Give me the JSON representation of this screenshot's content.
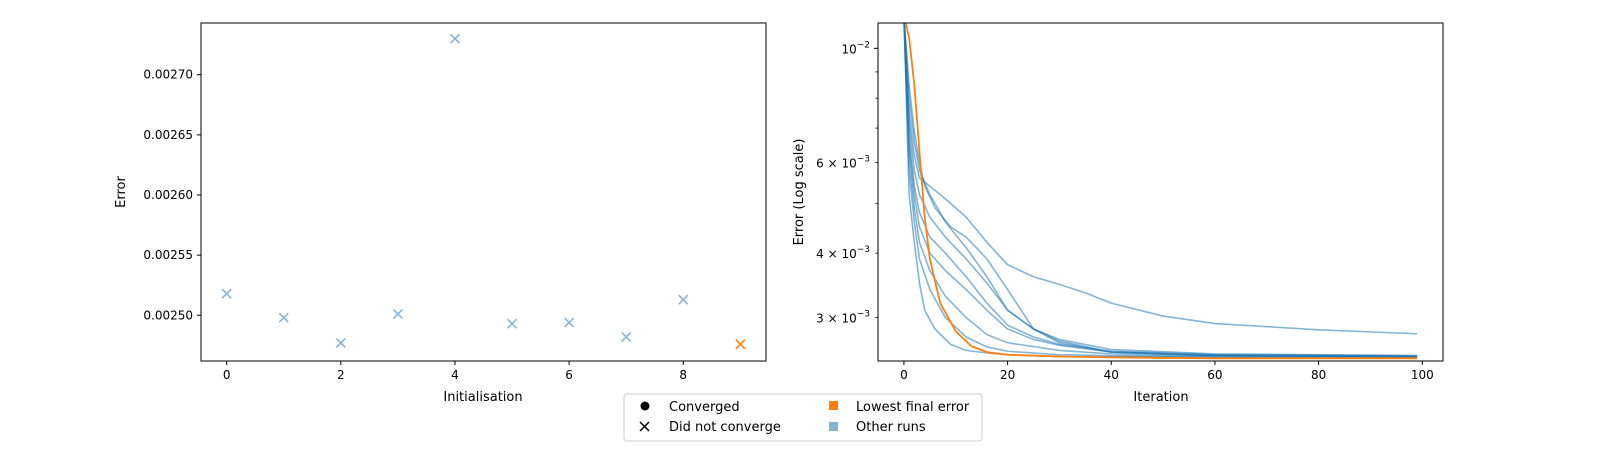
{
  "chart_data": [
    {
      "type": "scatter",
      "xlabel": "Initialisation",
      "ylabel": "Error",
      "xlim": [
        -0.45,
        9.45
      ],
      "ylim": [
        0.002462,
        0.002743
      ],
      "x_ticks": [
        0,
        2,
        4,
        6,
        8
      ],
      "x_tick_labels": [
        "0",
        "2",
        "4",
        "6",
        "8"
      ],
      "y_ticks": [
        0.0025,
        0.00255,
        0.0026,
        0.00265,
        0.0027
      ],
      "y_tick_labels": [
        "0.00250",
        "0.00255",
        "0.00260",
        "0.00265",
        "0.00270"
      ],
      "marker": "x",
      "points": [
        {
          "x": 0,
          "y": 0.002518,
          "group": "other"
        },
        {
          "x": 1,
          "y": 0.002498,
          "group": "other"
        },
        {
          "x": 2,
          "y": 0.002477,
          "group": "other"
        },
        {
          "x": 3,
          "y": 0.002501,
          "group": "other"
        },
        {
          "x": 4,
          "y": 0.00273,
          "group": "other"
        },
        {
          "x": 5,
          "y": 0.002493,
          "group": "other"
        },
        {
          "x": 6,
          "y": 0.002494,
          "group": "other"
        },
        {
          "x": 7,
          "y": 0.002482,
          "group": "other"
        },
        {
          "x": 8,
          "y": 0.002513,
          "group": "other"
        },
        {
          "x": 9,
          "y": 0.002476,
          "group": "lowest"
        }
      ]
    },
    {
      "type": "line",
      "xlabel": "Iteration",
      "ylabel": "Error (Log scale)",
      "yscale": "log",
      "xlim": [
        -5,
        104
      ],
      "ylim": [
        0.00247,
        0.0112
      ],
      "x_ticks": [
        0,
        20,
        40,
        60,
        80,
        100
      ],
      "x_tick_labels": [
        "0",
        "20",
        "40",
        "60",
        "80",
        "100"
      ],
      "y_major_ticks": [
        0.01
      ],
      "y_major_tick_labels": [
        "10^-2"
      ],
      "y_minor_ticks": [
        0.003,
        0.004,
        0.005,
        0.006,
        0.007,
        0.008,
        0.009
      ],
      "y_minor_tick_labels": [
        {
          "value": 0.003,
          "mantissa": "3",
          "exponent": "-3"
        },
        {
          "value": 0.004,
          "mantissa": "4",
          "exponent": "-3"
        },
        {
          "value": 0.006,
          "mantissa": "6",
          "exponent": "-3"
        }
      ],
      "series": [
        {
          "group": "other",
          "x": [
            0,
            1,
            2,
            3,
            5,
            8,
            12,
            16,
            20,
            25,
            30,
            35,
            40,
            50,
            60,
            80,
            99
          ],
          "y": [
            0.0115,
            0.0075,
            0.0062,
            0.0056,
            0.0054,
            0.0051,
            0.0047,
            0.0042,
            0.0038,
            0.0036,
            0.00348,
            0.00335,
            0.0032,
            0.00302,
            0.00292,
            0.00284,
            0.00279
          ]
        },
        {
          "group": "other",
          "x": [
            0,
            1,
            2,
            3,
            5,
            8,
            12,
            16,
            20,
            25,
            30,
            40,
            60,
            99
          ],
          "y": [
            0.0115,
            0.008,
            0.0066,
            0.0058,
            0.0052,
            0.0046,
            0.0041,
            0.0036,
            0.0031,
            0.00285,
            0.00272,
            0.0026,
            0.00255,
            0.00253
          ]
        },
        {
          "group": "other",
          "x": [
            0,
            1,
            2,
            3,
            4,
            6,
            9,
            12,
            16,
            20,
            25,
            30,
            40,
            60,
            99
          ],
          "y": [
            0.0115,
            0.0085,
            0.0069,
            0.006,
            0.0054,
            0.0049,
            0.0045,
            0.0043,
            0.0039,
            0.0034,
            0.00285,
            0.00268,
            0.00257,
            0.00254,
            0.00253
          ]
        },
        {
          "group": "other",
          "x": [
            0,
            1,
            2,
            3,
            5,
            8,
            12,
            16,
            20,
            25,
            30,
            40,
            60,
            99
          ],
          "y": [
            0.0115,
            0.0072,
            0.0058,
            0.0052,
            0.0047,
            0.0043,
            0.0039,
            0.0035,
            0.0031,
            0.00285,
            0.0027,
            0.00257,
            0.00253,
            0.00252
          ]
        },
        {
          "group": "other",
          "x": [
            0,
            1,
            2,
            3,
            5,
            8,
            12,
            16,
            20,
            25,
            30,
            40,
            60,
            99
          ],
          "y": [
            0.0115,
            0.0068,
            0.0054,
            0.0048,
            0.0043,
            0.004,
            0.0036,
            0.0032,
            0.0029,
            0.00275,
            0.00266,
            0.00258,
            0.00254,
            0.00252
          ]
        },
        {
          "group": "other",
          "x": [
            0,
            1,
            2,
            3,
            5,
            8,
            12,
            16,
            20,
            25,
            30,
            40,
            60,
            99
          ],
          "y": [
            0.0115,
            0.0065,
            0.0052,
            0.0045,
            0.004,
            0.0037,
            0.0034,
            0.0031,
            0.00285,
            0.00272,
            0.00265,
            0.00257,
            0.00253,
            0.00252
          ]
        },
        {
          "group": "other",
          "x": [
            0,
            1,
            2,
            3,
            5,
            8,
            12,
            16,
            20,
            30,
            40,
            60,
            99
          ],
          "y": [
            0.0115,
            0.0062,
            0.0049,
            0.0042,
            0.0037,
            0.0033,
            0.003,
            0.00278,
            0.00268,
            0.00259,
            0.00255,
            0.00253,
            0.00252
          ]
        },
        {
          "group": "other",
          "x": [
            0,
            1,
            2,
            3,
            5,
            8,
            12,
            16,
            20,
            30,
            40,
            60,
            99
          ],
          "y": [
            0.0115,
            0.0058,
            0.0046,
            0.0039,
            0.0034,
            0.003,
            0.00275,
            0.00263,
            0.00258,
            0.00254,
            0.00253,
            0.00252,
            0.00251
          ]
        },
        {
          "group": "other",
          "x": [
            0,
            1,
            2,
            3,
            4,
            6,
            9,
            12,
            16,
            20,
            30,
            99
          ],
          "y": [
            0.0115,
            0.0052,
            0.0042,
            0.0035,
            0.0031,
            0.00285,
            0.00266,
            0.00259,
            0.00256,
            0.00254,
            0.00252,
            0.00251
          ]
        },
        {
          "group": "lowest",
          "x": [
            0,
            1,
            2,
            3,
            4,
            5,
            7,
            10,
            13,
            16,
            20,
            30,
            40,
            60,
            99
          ],
          "y": [
            0.0115,
            0.0105,
            0.0085,
            0.0063,
            0.0047,
            0.0039,
            0.0032,
            0.00282,
            0.00264,
            0.00257,
            0.00254,
            0.00252,
            0.00251,
            0.0025,
            0.0025
          ]
        }
      ]
    }
  ],
  "legend": {
    "placement": "bottom-center",
    "entries": [
      {
        "label": "Converged",
        "marker": "circle",
        "color": "#000000"
      },
      {
        "label": "Did not converge",
        "marker": "x",
        "color": "#000000"
      },
      {
        "label": "Lowest final error",
        "marker": "square",
        "color": "#ff7f0e"
      },
      {
        "label": "Other runs",
        "marker": "square",
        "color": "#84b4d8"
      }
    ]
  },
  "colors": {
    "lowest": "#ff7f0e",
    "other_marker": "#84b4d8",
    "other_line": "#1f77b4"
  }
}
